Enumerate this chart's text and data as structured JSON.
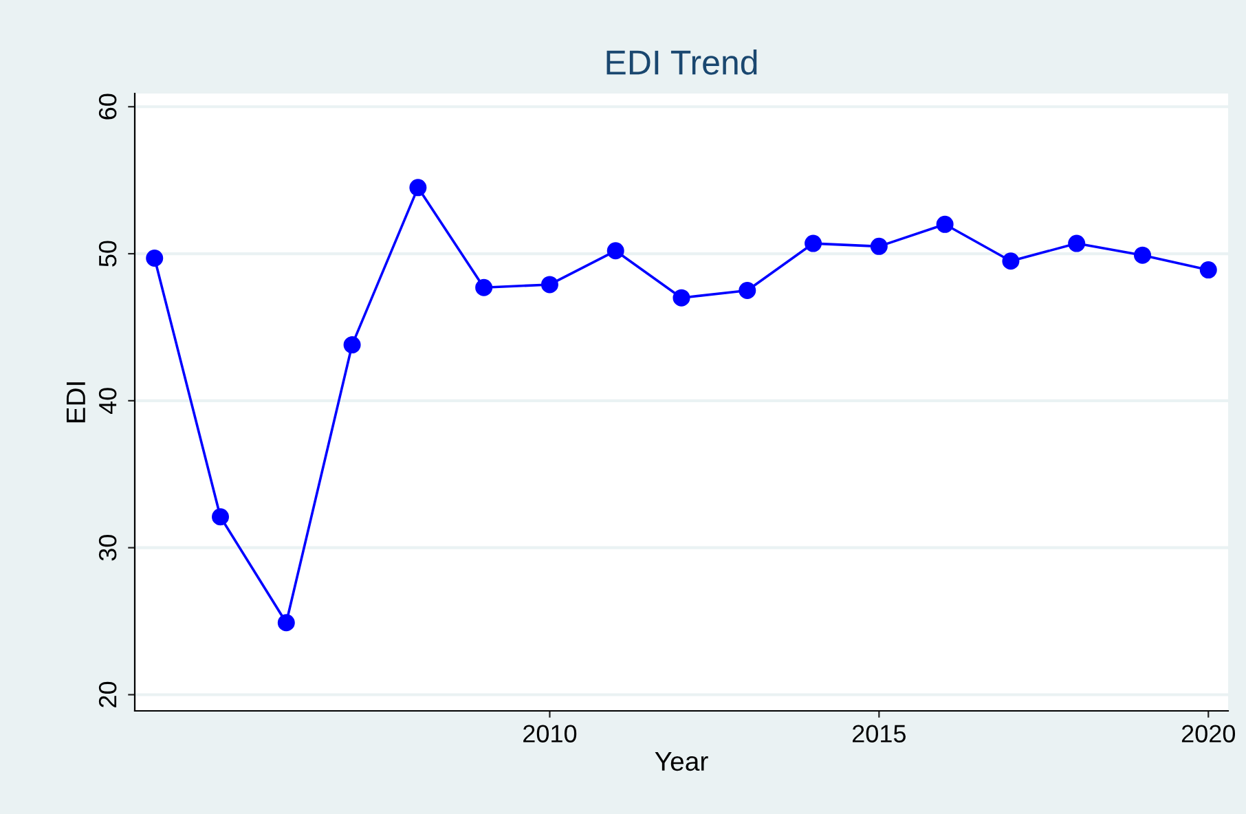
{
  "chart_data": {
    "type": "line",
    "title": "EDI Trend",
    "xlabel": "Year",
    "ylabel": "EDI",
    "x": [
      2004,
      2005,
      2006,
      2007,
      2008,
      2009,
      2010,
      2011,
      2012,
      2013,
      2014,
      2015,
      2016,
      2017,
      2018,
      2019,
      2020
    ],
    "series": [
      {
        "color": "#0000ff",
        "values": [
          49.7,
          32.1,
          24.9,
          43.8,
          54.5,
          47.7,
          47.9,
          50.2,
          47.0,
          47.5,
          50.7,
          50.5,
          52.0,
          49.5,
          50.7,
          49.9,
          48.9
        ]
      }
    ],
    "xlim": [
      2003.7,
      2020.3
    ],
    "xticks": [
      2010,
      2015,
      2020
    ],
    "ylim": [
      18.9,
      60.9
    ],
    "yticks": [
      20,
      30,
      40,
      50,
      60
    ],
    "grid": "y",
    "marker": "circle",
    "line_style": "solid",
    "legend": false
  }
}
